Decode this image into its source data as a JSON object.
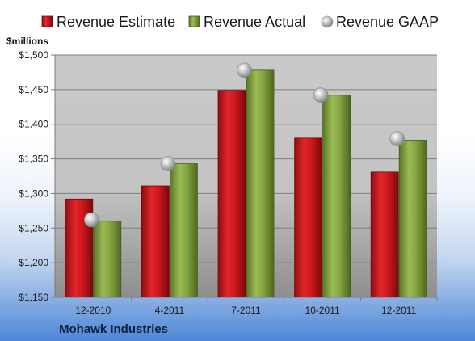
{
  "chart_data": {
    "type": "bar",
    "categories": [
      "12-2010",
      "4-2011",
      "7-2011",
      "10-2011",
      "12-2011"
    ],
    "series": [
      {
        "name": "Revenue Estimate",
        "kind": "bar",
        "color": "#c4161c",
        "values": [
          1292,
          1311,
          1449,
          1380,
          1331
        ]
      },
      {
        "name": "Revenue Actual",
        "kind": "bar",
        "color": "#7b9a3c",
        "values": [
          1260,
          1343,
          1478,
          1442,
          1377
        ]
      },
      {
        "name": "Revenue GAAP",
        "kind": "marker",
        "color": "#b8b8b8",
        "values": [
          1262,
          1343,
          1478,
          1442,
          1379
        ]
      }
    ],
    "ylabel": "$millions",
    "ylim": [
      1150,
      1500
    ],
    "yticks": [
      1150,
      1200,
      1250,
      1300,
      1350,
      1400,
      1450,
      1500
    ],
    "ytick_labels": [
      "$1,150",
      "$1,200",
      "$1,250",
      "$1,300",
      "$1,350",
      "$1,400",
      "$1,450",
      "$1,500"
    ],
    "grid": true,
    "legend_position": "top",
    "footer": "Mohawk Industries"
  }
}
